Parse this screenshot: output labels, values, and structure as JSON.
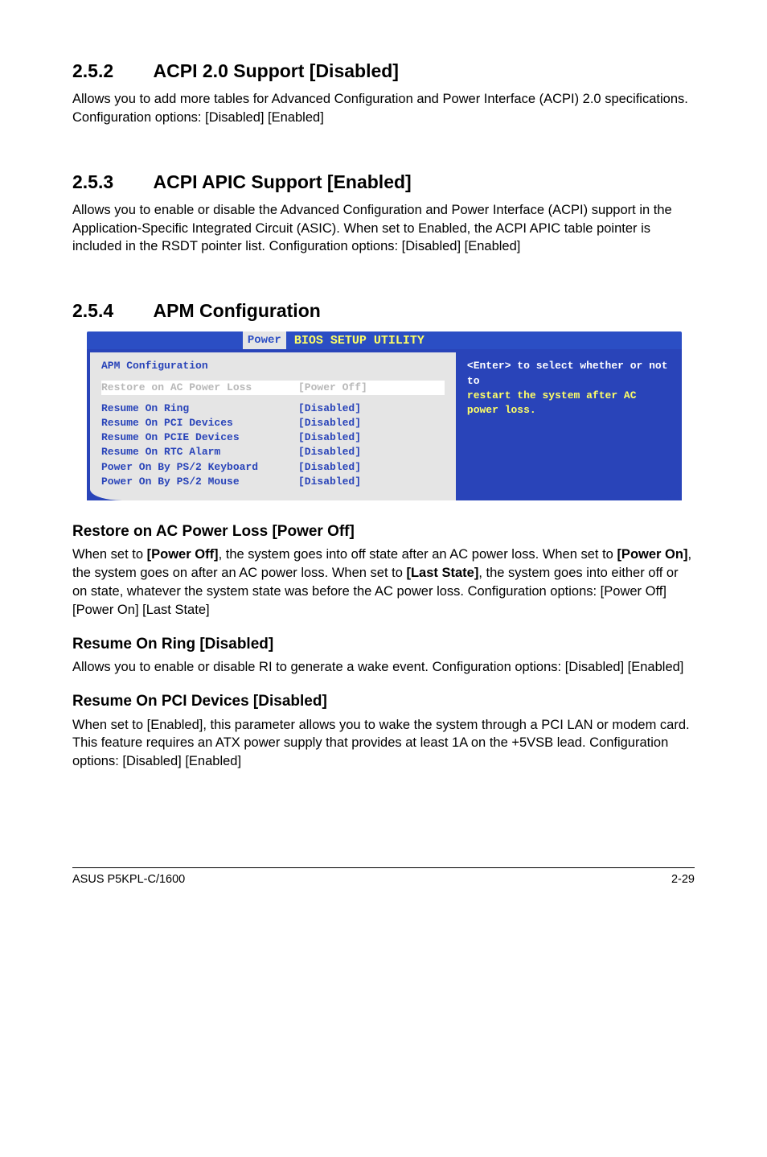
{
  "sections": {
    "s252": {
      "num": "2.5.2",
      "title": "ACPI 2.0 Support [Disabled]",
      "para": "Allows you to add more tables for Advanced Configuration and Power Interface (ACPI) 2.0 specifications. Configuration options: [Disabled] [Enabled]"
    },
    "s253": {
      "num": "2.5.3",
      "title": "ACPI APIC Support [Enabled]",
      "para": "Allows you to enable or disable the Advanced Configuration and Power Interface (ACPI) support in the Application-Specific Integrated Circuit (ASIC). When set to Enabled, the ACPI APIC table pointer is included in the RSDT pointer list. Configuration options: [Disabled] [Enabled]"
    },
    "s254": {
      "num": "2.5.4",
      "title": "APM Configuration"
    }
  },
  "bios": {
    "title": "BIOS SETUP UTILITY",
    "tab": "Power",
    "panel_heading": "APM Configuration",
    "rows": [
      {
        "label": "Restore on AC Power Loss",
        "val": "[Power Off]",
        "highlight": true
      },
      {
        "label": "",
        "val": "",
        "highlight": false,
        "spacer": true
      },
      {
        "label": "Resume On Ring",
        "val": "[Disabled]",
        "highlight": false
      },
      {
        "label": "Resume On PCI Devices",
        "val": "[Disabled]",
        "highlight": false
      },
      {
        "label": "Resume On PCIE Devices",
        "val": "[Disabled]",
        "highlight": false
      },
      {
        "label": "Resume On RTC Alarm",
        "val": "[Disabled]",
        "highlight": false
      },
      {
        "label": "Power On By PS/2 Keyboard",
        "val": "[Disabled]",
        "highlight": false
      },
      {
        "label": "Power On By PS/2 Mouse",
        "val": "[Disabled]",
        "highlight": false
      }
    ],
    "help_white": "<Enter> to select whether or not to",
    "help_yellow": "restart the system after AC power loss.",
    "colors": {
      "titlebar_bg": "#2b4ec4",
      "titlebar_text": "#ffff66",
      "body_bg": "#2944b9",
      "panel_bg": "#e5e5e5",
      "panel_text": "#2944b9",
      "highlight_bg": "#ffffff",
      "highlight_text": "#b8b8b8",
      "help_white": "#ffffff",
      "help_yellow": "#ffff66"
    }
  },
  "subs": {
    "restore": {
      "title": "Restore on AC Power Loss [Power Off]",
      "p1a": "When set to ",
      "p1b": "[Power Off]",
      "p1c": ", the system goes into off state after an AC power loss. When set to ",
      "p1d": "[Power On]",
      "p1e": ", the system goes on after an AC power loss. When set to ",
      "p1f": "[Last State]",
      "p1g": ", the system goes into either off or on state, whatever the system state was before the AC power loss. Configuration options: [Power Off] [Power On] [Last State]"
    },
    "ring": {
      "title": "Resume On Ring [Disabled]",
      "para": "Allows you to enable or disable RI to generate a wake event. Configuration options: [Disabled] [Enabled]"
    },
    "pci": {
      "title": "Resume On PCI Devices [Disabled]",
      "para": "When set to [Enabled], this parameter allows you to wake the system through a PCI LAN or modem card. This feature requires an ATX power supply that provides at least 1A on the +5VSB lead. Configuration options: [Disabled] [Enabled]"
    }
  },
  "footer": {
    "left": "ASUS P5KPL-C/1600",
    "right": "2-29"
  }
}
